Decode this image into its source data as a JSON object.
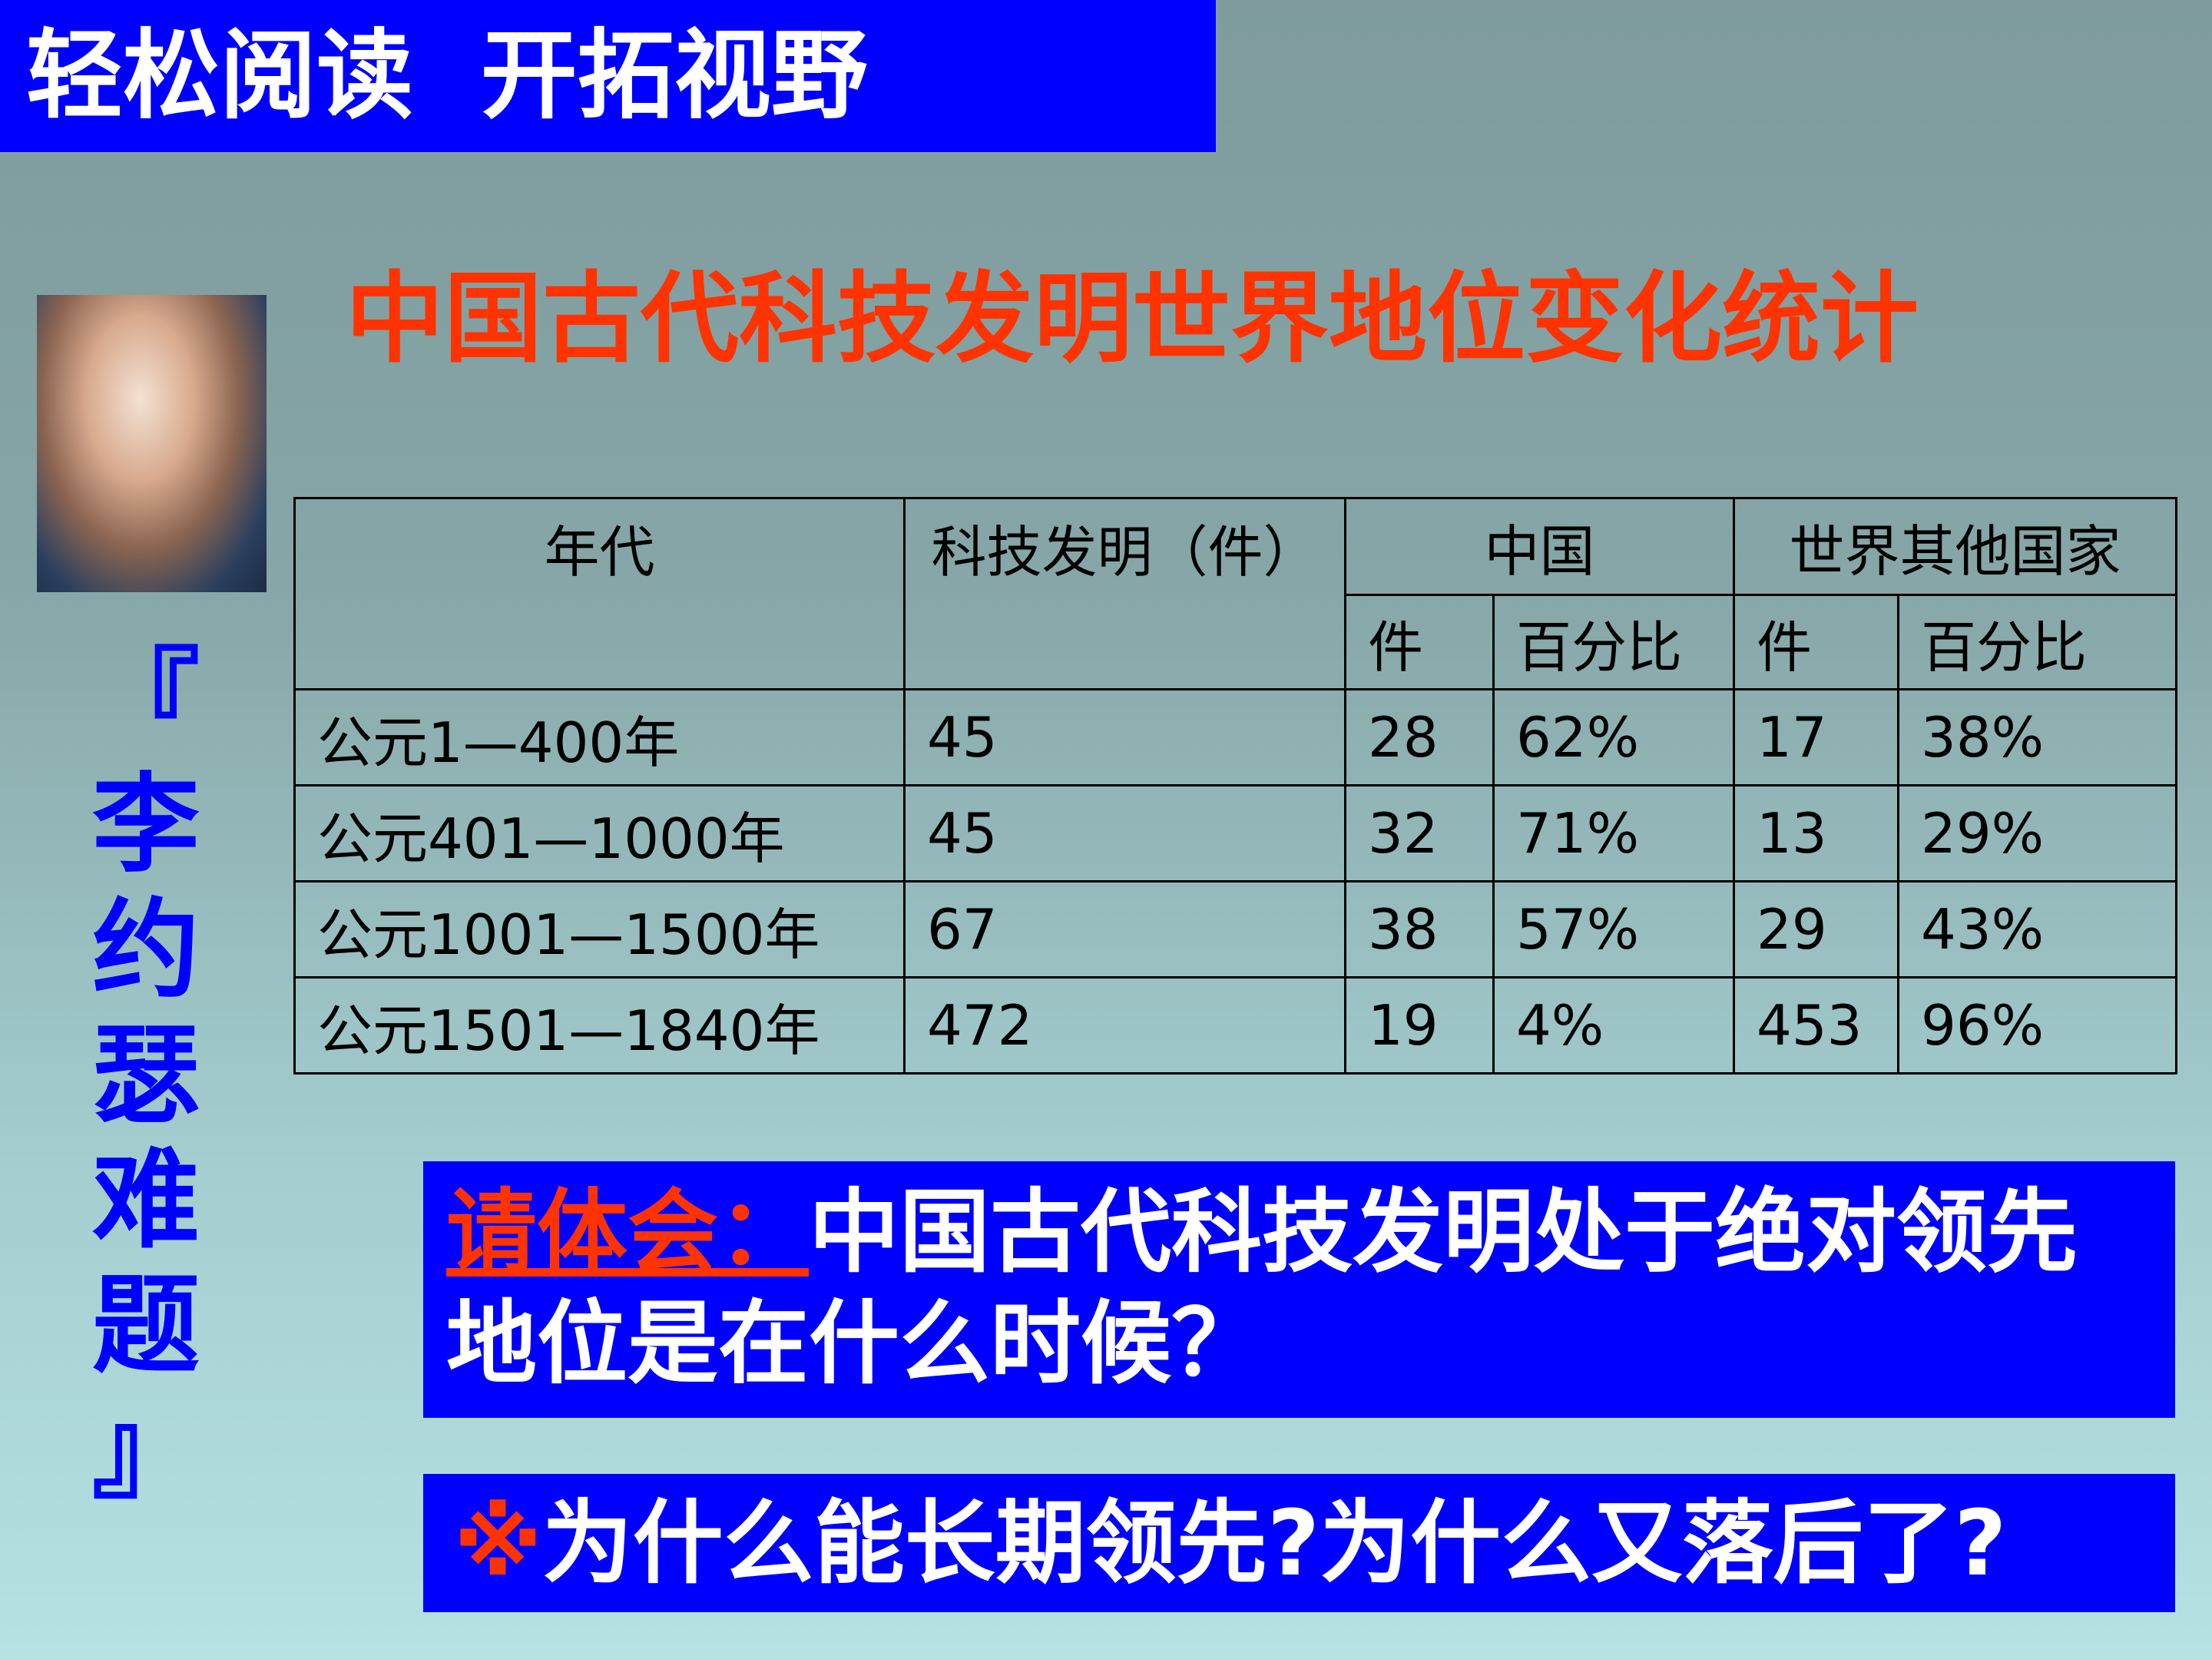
{
  "header": {
    "title": "轻松阅读  开拓视野"
  },
  "title": "中国古代科技发明世界地位变化统计",
  "side_label": "『李约瑟难题』",
  "table": {
    "headers": {
      "era": "年代",
      "inventions": "科技发明（件）",
      "china": "中国",
      "world": "世界其他国家",
      "count": "件",
      "percent": "百分比"
    },
    "rows": [
      [
        "公元1—400年",
        "45",
        "28",
        "62%",
        "17",
        "38%"
      ],
      [
        "公元401—1000年",
        "45",
        "32",
        "71%",
        "13",
        "29%"
      ],
      [
        "公元1001—1500年",
        "67",
        "38",
        "57%",
        "29",
        "43%"
      ],
      [
        "公元1501—1840年",
        "472",
        "19",
        "4%",
        "453",
        "96%"
      ]
    ]
  },
  "question1": {
    "label": "请体会：",
    "text": "中国古代科技发明处于绝对领先地位是在什么时候？"
  },
  "question2": {
    "mark": "※",
    "text": "为什么能长期领先?为什么又落后了?"
  }
}
